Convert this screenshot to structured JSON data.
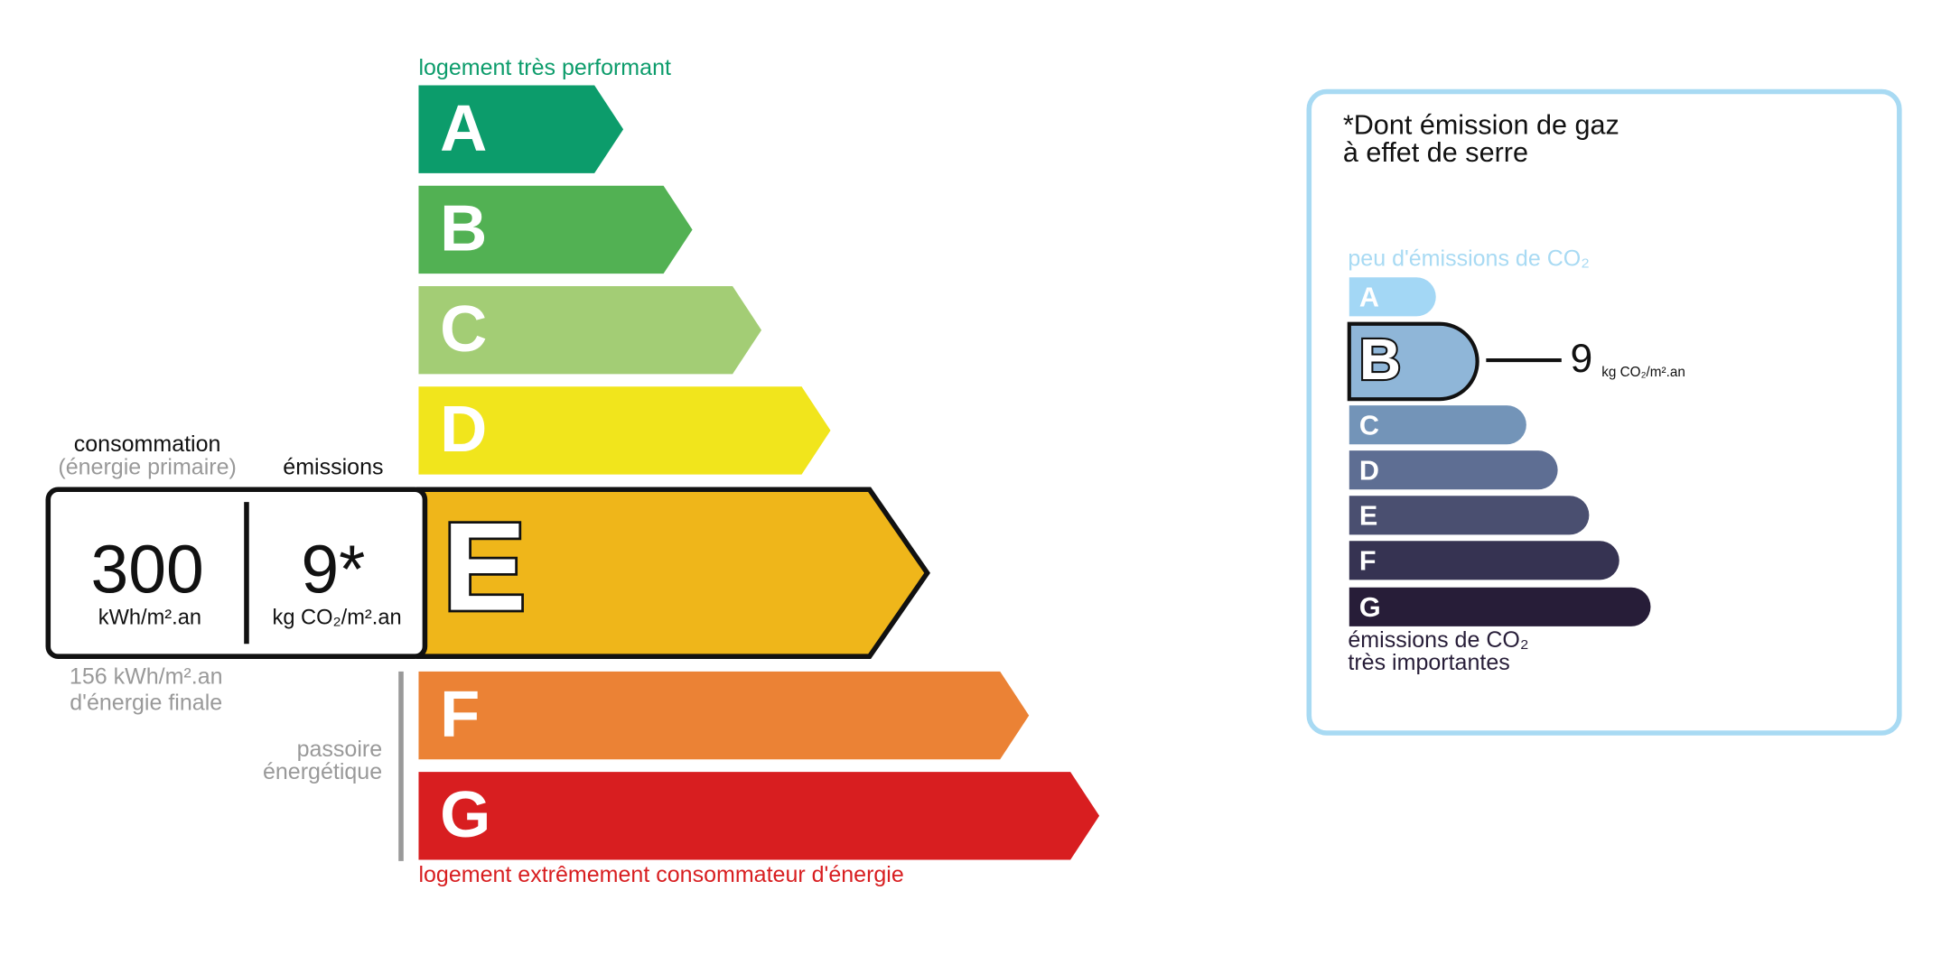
{
  "energy": {
    "top_label": "logement très performant",
    "bottom_label": "logement extrêmement consommateur d'énergie",
    "classes": [
      {
        "letter": "A",
        "color": "#0c9c6b"
      },
      {
        "letter": "B",
        "color": "#52b153"
      },
      {
        "letter": "C",
        "color": "#a3cd75"
      },
      {
        "letter": "D",
        "color": "#f1e51c"
      },
      {
        "letter": "E",
        "color": "#efb61a"
      },
      {
        "letter": "F",
        "color": "#eb8235"
      },
      {
        "letter": "G",
        "color": "#d81e20"
      }
    ],
    "consumption": {
      "label": "consommation",
      "sublabel": "(énergie primaire)",
      "value": 300,
      "unit": "kWh/m².an"
    },
    "emissions": {
      "label": "émissions",
      "value": "9*",
      "unit": "kg CO₂/m².an"
    },
    "final_energy": [
      "156 kWh/m².an",
      "d'énergie finale"
    ],
    "sieve": [
      "passoire",
      "énergétique"
    ]
  },
  "climate": {
    "title": [
      "*Dont émission de gaz",
      "à effet de serre"
    ],
    "top_label": "peu d'émissions de CO₂",
    "bottom_label": [
      "émissions de CO₂",
      "très importantes"
    ],
    "classes": [
      {
        "letter": "A",
        "color": "#a3d7f5"
      },
      {
        "letter": "B",
        "color": "#8fb6d8"
      },
      {
        "letter": "C",
        "color": "#7394b8"
      },
      {
        "letter": "D",
        "color": "#5e6e93"
      },
      {
        "letter": "E",
        "color": "#4a4f70"
      },
      {
        "letter": "F",
        "color": "#363352"
      },
      {
        "letter": "G",
        "color": "#271d38"
      }
    ],
    "value": 9,
    "unit": "kg CO₂/m².an"
  }
}
